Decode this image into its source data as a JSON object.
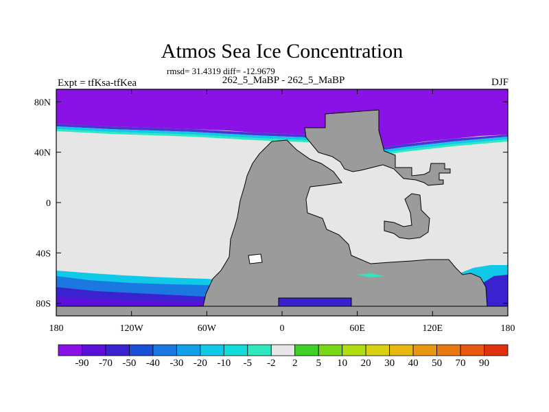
{
  "chart_data": {
    "type": "heatmap",
    "title": "Atmos Sea Ice Concentration",
    "stats_text": "rmsd= 31.4319 diff= -12.9679",
    "left_label": "Expt = tfKsa-tfKea",
    "center_label": "262_5_MaBP - 262_5_MaBP",
    "right_label": "DJF",
    "x_ticks": [
      "180",
      "120W",
      "60W",
      "0",
      "60E",
      "120E",
      "180"
    ],
    "x_tick_values": [
      -180,
      -120,
      -60,
      0,
      60,
      120,
      180
    ],
    "y_ticks": [
      "80N",
      "40N",
      "0",
      "40S",
      "80S"
    ],
    "y_tick_values": [
      80,
      40,
      0,
      -40,
      -80
    ],
    "xlim": [
      -180,
      180
    ],
    "ylim": [
      -90,
      90
    ],
    "colorbar": {
      "labels": [
        "-90",
        "-70",
        "-50",
        "-40",
        "-30",
        "-20",
        "-10",
        "-5",
        "-2",
        "2",
        "5",
        "10",
        "20",
        "30",
        "40",
        "50",
        "70",
        "90"
      ],
      "colors": [
        "#8a12e6",
        "#5a10d8",
        "#3a22d0",
        "#1a50d8",
        "#1a78e0",
        "#12a0e8",
        "#10c8e8",
        "#10dcd8",
        "#30e8c0",
        "#e6e6e6",
        "#40d028",
        "#78d818",
        "#b0dc10",
        "#d8d010",
        "#e8b810",
        "#e89810",
        "#e87810",
        "#e85810",
        "#e03010"
      ]
    },
    "land_color": "#9b9b9b",
    "zero_color": "#e6e6e6"
  }
}
